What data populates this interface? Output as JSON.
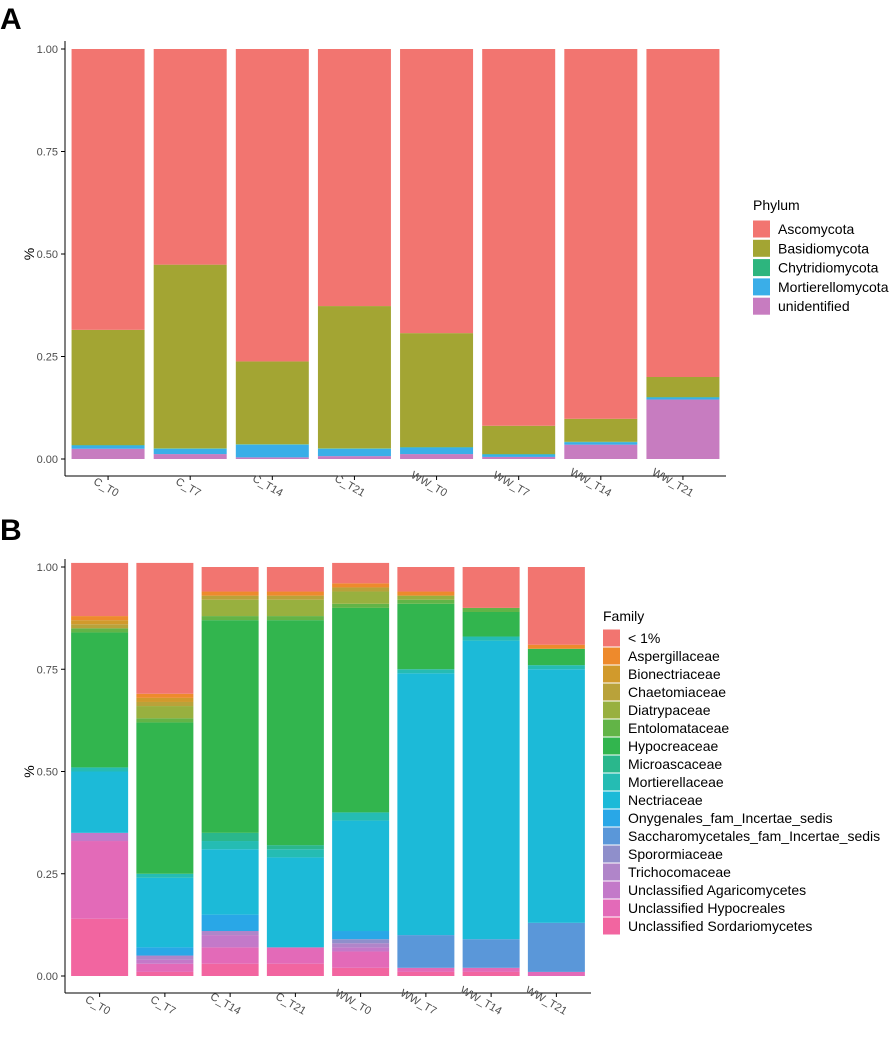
{
  "chart_data": [
    {
      "panel": "A",
      "type": "bar",
      "stacked": true,
      "categories": [
        "C_T0",
        "C_T7",
        "C_T14",
        "C_T21",
        "WW_T0",
        "WW_T7",
        "WW_T14",
        "WW_T21"
      ],
      "ylabel": "%",
      "xlabel": "",
      "ylim": [
        0,
        1
      ],
      "yticks": [
        "0.00",
        "0.25",
        "0.50",
        "0.75",
        "1.00"
      ],
      "legend_title": "Phylum",
      "legend_position": "right",
      "series": [
        {
          "name": "unidentified",
          "color": "#C77CC0",
          "values": [
            0.025,
            0.012,
            0.004,
            0.007,
            0.012,
            0.005,
            0.035,
            0.145
          ]
        },
        {
          "name": "Mortierellomycota",
          "color": "#3AAEE8",
          "values": [
            0.008,
            0.013,
            0.031,
            0.018,
            0.016,
            0.006,
            0.006,
            0.005
          ]
        },
        {
          "name": "Chytridiomycota",
          "color": "#2DB57E",
          "values": [
            0.001,
            0.001,
            0.001,
            0.001,
            0.001,
            0.001,
            0.001,
            0.001
          ]
        },
        {
          "name": "Basidiomycota",
          "color": "#A3A533",
          "values": [
            0.281,
            0.448,
            0.202,
            0.347,
            0.278,
            0.069,
            0.056,
            0.049
          ]
        },
        {
          "name": "Ascomycota",
          "color": "#F27570",
          "values": [
            0.685,
            0.526,
            0.762,
            0.627,
            0.693,
            0.919,
            0.902,
            0.8
          ]
        }
      ],
      "legend_order": [
        "Ascomycota",
        "Basidiomycota",
        "Chytridiomycota",
        "Mortierellomycota",
        "unidentified"
      ]
    },
    {
      "panel": "B",
      "type": "bar",
      "stacked": true,
      "categories": [
        "C_T0",
        "C_T7",
        "C_T14",
        "C_T21",
        "WW_T0",
        "WW_T7",
        "WW_T14",
        "WW_T21"
      ],
      "ylabel": "%",
      "xlabel": "",
      "ylim": [
        0,
        1
      ],
      "yticks": [
        "0.00",
        "0.25",
        "0.50",
        "0.75",
        "1.00"
      ],
      "legend_title": "Family",
      "legend_position": "right",
      "series": [
        {
          "name": "Unclassified Sordariomycetes",
          "color": "#F265A0",
          "values": [
            0.14,
            0.01,
            0.03,
            0.03,
            0.02,
            0.01,
            0.01,
            0.0
          ]
        },
        {
          "name": "Unclassified Hypocreales",
          "color": "#E36AB8",
          "values": [
            0.19,
            0.02,
            0.04,
            0.04,
            0.04,
            0.01,
            0.01,
            0.01
          ]
        },
        {
          "name": "Unclassified Agaricomycetes",
          "color": "#C379C9",
          "values": [
            0.02,
            0.01,
            0.03,
            0.0,
            0.01,
            0.0,
            0.0,
            0.0
          ]
        },
        {
          "name": "Trichocomaceae",
          "color": "#B085C9",
          "values": [
            0.0,
            0.01,
            0.01,
            0.0,
            0.01,
            0.0,
            0.0,
            0.0
          ]
        },
        {
          "name": "Sporormiaceae",
          "color": "#8F8FCB",
          "values": [
            0.0,
            0.0,
            0.0,
            0.0,
            0.01,
            0.0,
            0.0,
            0.0
          ]
        },
        {
          "name": "Saccharomycetales_fam_Incertae_sedis",
          "color": "#5A97D9",
          "values": [
            0.0,
            0.0,
            0.0,
            0.0,
            0.0,
            0.08,
            0.07,
            0.12
          ]
        },
        {
          "name": "Onygenales_fam_Incertae_sedis",
          "color": "#29A7E7",
          "values": [
            0.0,
            0.02,
            0.04,
            0.0,
            0.02,
            0.0,
            0.0,
            0.0
          ]
        },
        {
          "name": "Nectriaceae",
          "color": "#1CBAD8",
          "values": [
            0.15,
            0.17,
            0.16,
            0.22,
            0.27,
            0.64,
            0.73,
            0.62
          ]
        },
        {
          "name": "Mortierellaceae",
          "color": "#25BCB3",
          "values": [
            0.01,
            0.01,
            0.02,
            0.02,
            0.02,
            0.01,
            0.01,
            0.01
          ]
        },
        {
          "name": "Microascaceae",
          "color": "#2AB78C",
          "values": [
            0.0,
            0.0,
            0.02,
            0.01,
            0.0,
            0.0,
            0.0,
            0.0
          ]
        },
        {
          "name": "Hypocreaceae",
          "color": "#32B54E",
          "values": [
            0.33,
            0.37,
            0.52,
            0.55,
            0.5,
            0.16,
            0.06,
            0.04
          ]
        },
        {
          "name": "Entolomataceae",
          "color": "#62B447",
          "values": [
            0.01,
            0.01,
            0.01,
            0.01,
            0.01,
            0.01,
            0.01,
            0.0
          ]
        },
        {
          "name": "Diatrypaceae",
          "color": "#98B03F",
          "values": [
            0.0,
            0.03,
            0.04,
            0.04,
            0.03,
            0.01,
            0.0,
            0.0
          ]
        },
        {
          "name": "Chaetomiaceae",
          "color": "#B9A23A",
          "values": [
            0.01,
            0.01,
            0.01,
            0.01,
            0.01,
            0.0,
            0.0,
            0.0
          ]
        },
        {
          "name": "Bionectriaceae",
          "color": "#D19A2C",
          "values": [
            0.01,
            0.01,
            0.0,
            0.0,
            0.0,
            0.0,
            0.0,
            0.0
          ]
        },
        {
          "name": "Aspergillaceae",
          "color": "#EE8A2C",
          "values": [
            0.01,
            0.01,
            0.01,
            0.01,
            0.01,
            0.01,
            0.0,
            0.01
          ]
        },
        {
          "name": "< 1%",
          "color": "#F27570",
          "values": [
            0.13,
            0.32,
            0.06,
            0.06,
            0.05,
            0.06,
            0.1,
            0.19
          ]
        }
      ],
      "legend_order": [
        "< 1%",
        "Aspergillaceae",
        "Bionectriaceae",
        "Chaetomiaceae",
        "Diatrypaceae",
        "Entolomataceae",
        "Hypocreaceae",
        "Microascaceae",
        "Mortierellaceae",
        "Nectriaceae",
        "Onygenales_fam_Incertae_sedis",
        "Saccharomycetales_fam_Incertae_sedis",
        "Sporormiaceae",
        "Trichocomaceae",
        "Unclassified Agaricomycetes",
        "Unclassified Hypocreales",
        "Unclassified Sordariomycetes"
      ]
    }
  ]
}
